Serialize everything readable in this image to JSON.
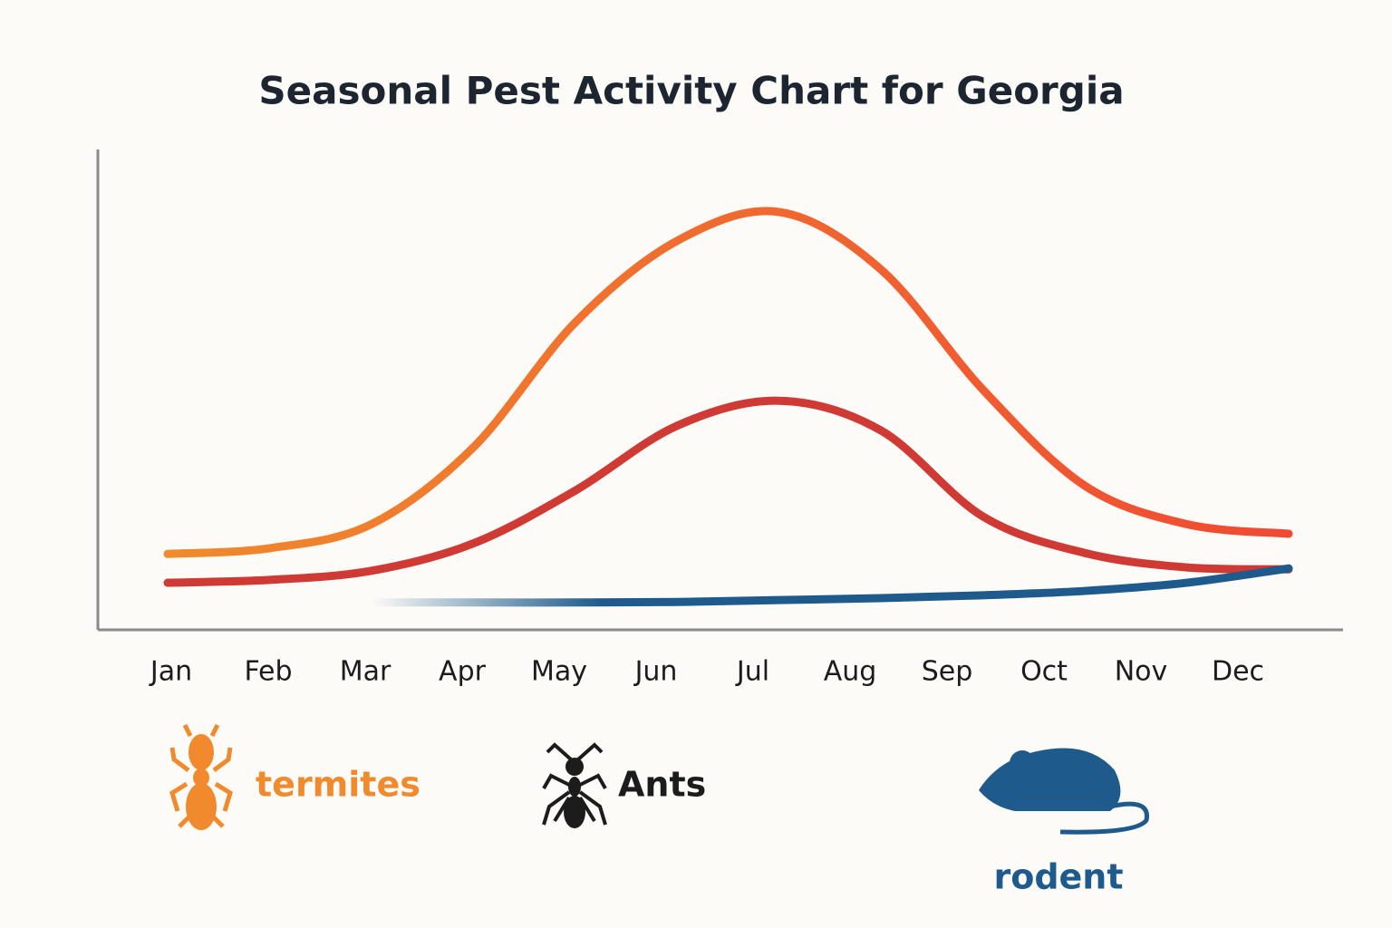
{
  "chart_data": {
    "type": "line",
    "title": "Seasonal Pest Activity Chart for Georgia",
    "categories": [
      "Jan",
      "Feb",
      "Mar",
      "Apr",
      "May",
      "Jun",
      "Jul",
      "Aug",
      "Sep",
      "Oct",
      "Nov",
      "Dec"
    ],
    "ylim": [
      0,
      100
    ],
    "series": [
      {
        "name": "termites",
        "color": "#f08a2c",
        "gradient": [
          "#f08a2c",
          "#f04a32"
        ],
        "label_color": "#f08a2c",
        "values": [
          15.8,
          17,
          22,
          38,
          64,
          81,
          87,
          75,
          50,
          30,
          22,
          20
        ]
      },
      {
        "name": "Ants",
        "color": "#d03a35",
        "label_color": "#1c1c1c",
        "values": [
          9.8,
          10.4,
          12.3,
          18,
          29,
          42.5,
          47.7,
          41.5,
          23.6,
          16,
          13,
          12.6
        ]
      },
      {
        "name": "rodent",
        "color": "#1e5b8c",
        "label_color": "#1e5b8c",
        "values": [
          null,
          null,
          5.7,
          5.7,
          5.7,
          5.8,
          6.2,
          6.6,
          7.2,
          8.1,
          9.8,
          12.8
        ]
      }
    ]
  }
}
